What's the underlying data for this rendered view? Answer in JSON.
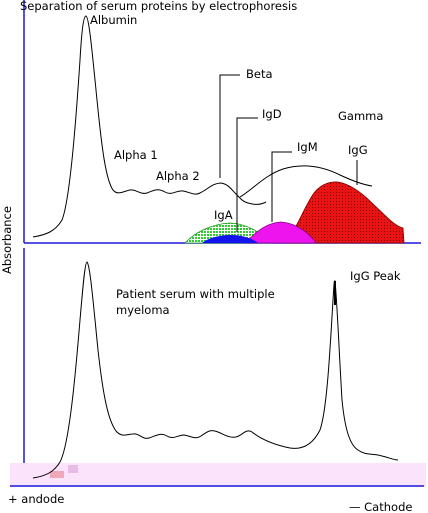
{
  "title": "Separation of serum proteins by electrophoresis",
  "y_axis_label": "Absorbance",
  "top_panel": {
    "labels": {
      "albumin": "Albumin",
      "alpha1": "Alpha 1",
      "alpha2": "Alpha 2",
      "beta": "Beta",
      "igd": "IgD",
      "igm": "IgM",
      "igg": "IgG",
      "gamma": "Gamma",
      "iga": "IgA"
    }
  },
  "bottom_panel": {
    "labels": {
      "patient_line1": "Patient serum with multiple",
      "patient_line2": "myeloma",
      "igg_peak": "IgG Peak"
    }
  },
  "x_axis": {
    "anode": "+ andode",
    "cathode": "— Cathode"
  },
  "colors": {
    "axis": "#1a1ad6",
    "curve": "#000000",
    "iga_band": "#2ecc2e",
    "igd_band": "#1414ee",
    "igm_band": "#ee14ee",
    "igg_band": "#e81414",
    "gel_strip": "#fbe3fb"
  }
}
